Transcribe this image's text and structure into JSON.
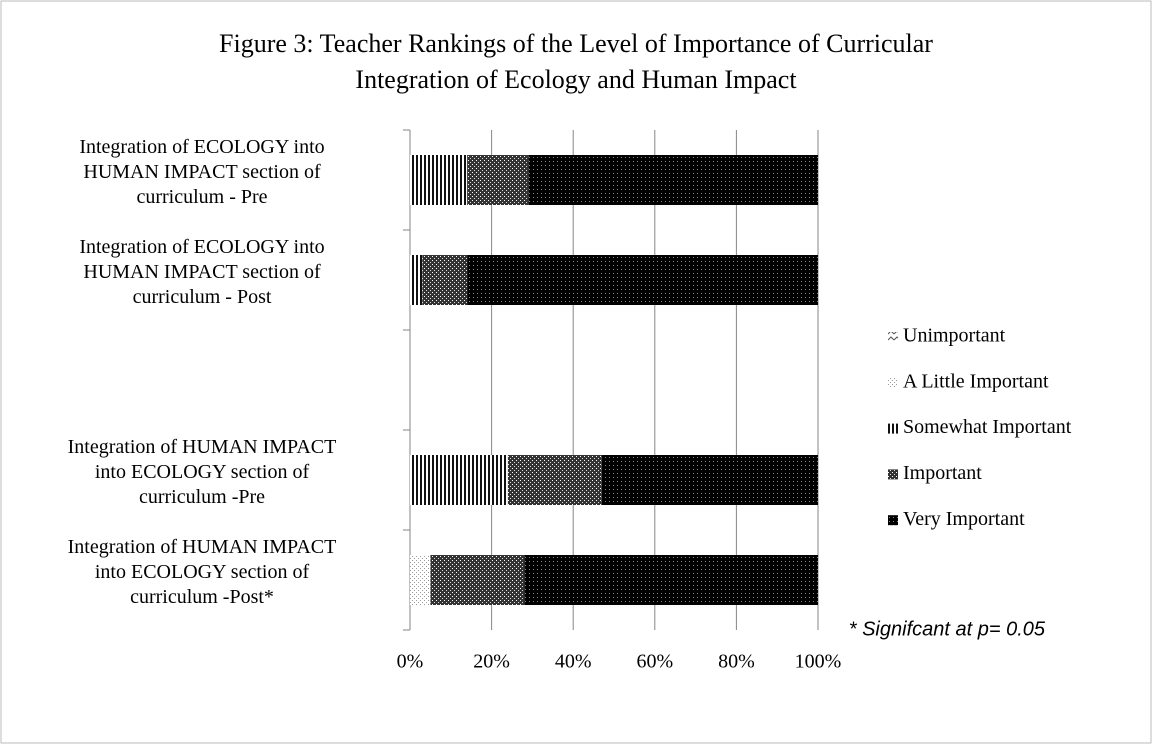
{
  "chart_data": {
    "type": "bar",
    "orientation": "horizontal",
    "stacked": true,
    "title": "Figure 3: Teacher Rankings of the Level of Importance of Curricular\nIntegration of Ecology and Human Impact",
    "categories": [
      "Integration of ECOLOGY into\nHUMAN IMPACT section of\ncurriculum - Pre",
      "Integration of ECOLOGY into\nHUMAN IMPACT section of\ncurriculum - Post",
      null,
      "Integration of HUMAN IMPACT\ninto ECOLOGY section of\ncurriculum -Pre",
      "Integration of HUMAN IMPACT\ninto ECOLOGY section of\ncurriculum -Post*"
    ],
    "series": [
      {
        "name": "Unimportant",
        "color": "#555555",
        "values": [
          0,
          0,
          null,
          0,
          0
        ]
      },
      {
        "name": "A Little Important",
        "color": "#999999",
        "values": [
          0,
          0,
          null,
          0,
          5
        ]
      },
      {
        "name": "Somewhat Important",
        "color": "#111111",
        "values": [
          14,
          3,
          null,
          24,
          0
        ]
      },
      {
        "name": "Important",
        "color": "#333333",
        "values": [
          15,
          11,
          null,
          23,
          23
        ]
      },
      {
        "name": "Very Important",
        "color": "#000000",
        "values": [
          71,
          86,
          null,
          53,
          72
        ]
      }
    ],
    "xlim": [
      0,
      100
    ],
    "xticks": [
      {
        "value": 0,
        "label": "0%"
      },
      {
        "value": 20,
        "label": "20%"
      },
      {
        "value": 40,
        "label": "40%"
      },
      {
        "value": 60,
        "label": "60%"
      },
      {
        "value": 80,
        "label": "80%"
      },
      {
        "value": 100,
        "label": "100%"
      }
    ],
    "grid": true,
    "legend": "right",
    "annotation": "* Signifcant at p= 0.05"
  }
}
